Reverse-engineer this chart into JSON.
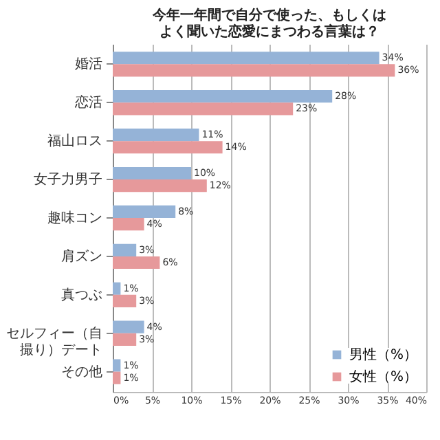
{
  "chart_data": {
    "type": "bar",
    "orientation": "horizontal",
    "title": "今年一年間で自分で使った、もしくはよく聞いた恋愛にまつわる言葉は？",
    "categories": [
      "婚活",
      "恋活",
      "福山ロス",
      "女子力男子",
      "趣味コン",
      "肩ズン",
      "真つぶ",
      "セルフィー（自撮り）デート",
      "その他"
    ],
    "series": [
      {
        "name": "男性（%）",
        "color": "#95b3d7",
        "values": [
          34,
          28,
          11,
          10,
          8,
          3,
          1,
          4,
          1
        ],
        "value_labels": [
          "34%",
          "28%",
          "11%",
          "10%",
          "8%",
          "3%",
          "1%",
          "4%",
          "1%"
        ]
      },
      {
        "name": "女性（%）",
        "color": "#e6999b",
        "values": [
          36,
          23,
          14,
          12,
          4,
          6,
          3,
          3,
          1
        ],
        "value_labels": [
          "36%",
          "23%",
          "14%",
          "12%",
          "4%",
          "6%",
          "3%",
          "3%",
          "1%"
        ]
      }
    ],
    "xlim": [
      0,
      40
    ],
    "xticks": [
      {
        "value": 0,
        "label": "0%"
      },
      {
        "value": 5,
        "label": "5%"
      },
      {
        "value": 10,
        "label": "10%"
      },
      {
        "value": 15,
        "label": "15%"
      },
      {
        "value": 20,
        "label": "20%"
      },
      {
        "value": 25,
        "label": "25%"
      },
      {
        "value": 30,
        "label": "30%"
      },
      {
        "value": 35,
        "label": "35%"
      },
      {
        "value": 40,
        "label": "40%"
      }
    ],
    "grid": "x",
    "legend": "bottom right"
  }
}
